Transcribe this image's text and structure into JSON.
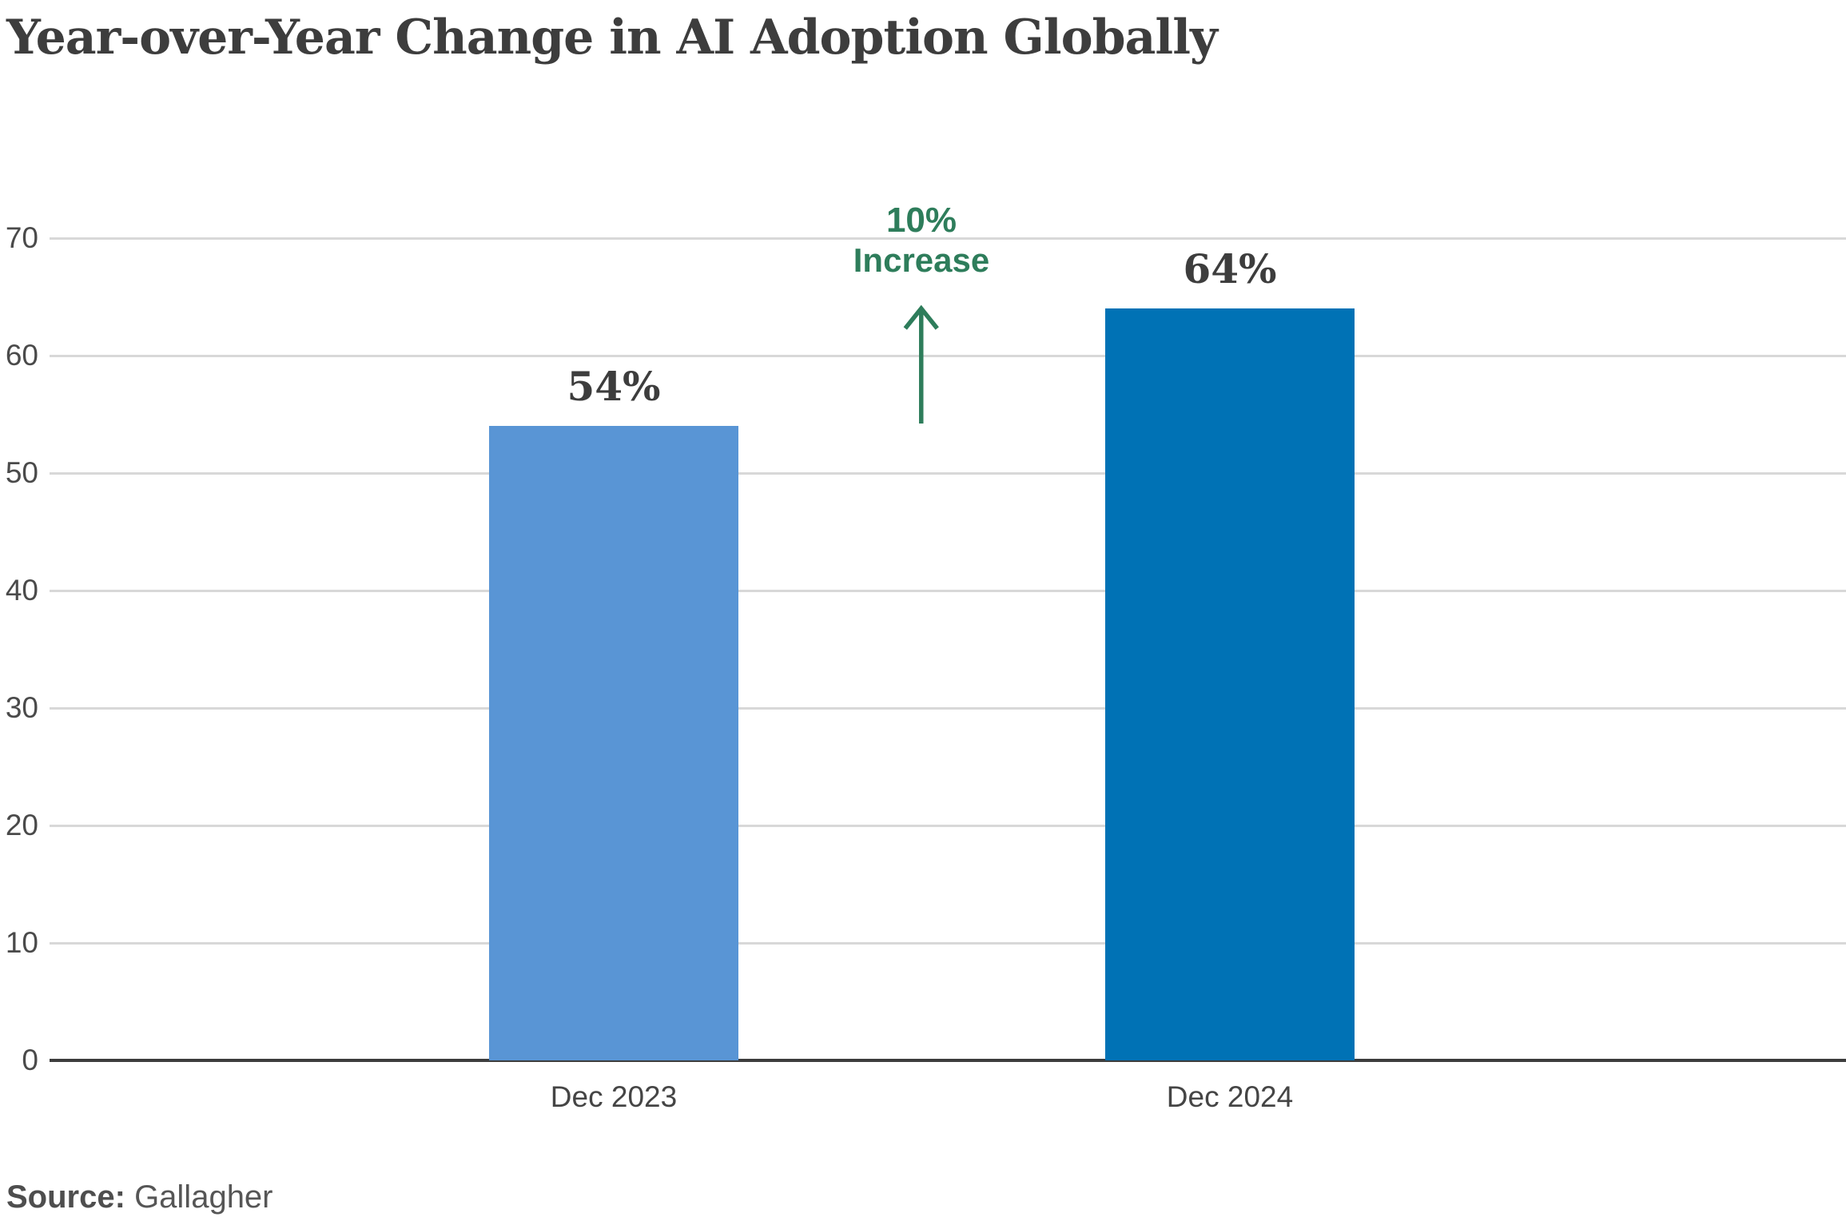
{
  "title": "Year-over-Year Change in AI Adoption Globally",
  "chart_data": {
    "type": "bar",
    "title": "Year-over-Year Change in AI Adoption Globally",
    "categories": [
      "Dec 2023",
      "Dec 2024"
    ],
    "values": [
      54,
      64
    ],
    "value_labels": [
      "54%",
      "64%"
    ],
    "series_colors": [
      "#5995d5",
      "#0072b5"
    ],
    "xlabel": "",
    "ylabel": "",
    "ylim": [
      0,
      70
    ],
    "yticks": [
      0,
      10,
      20,
      30,
      40,
      50,
      60,
      70
    ],
    "grid": true,
    "legend_position": "none",
    "annotation": {
      "line1": "10%",
      "line2": "Increase",
      "arrow": "up",
      "color": "#2e7d5b",
      "between_categories": [
        "Dec 2023",
        "Dec 2024"
      ]
    }
  },
  "source": {
    "label": "Source:",
    "value": "Gallagher"
  },
  "colors": {
    "background": "#ffffff",
    "bar_dec_2023": "#5995d5",
    "bar_dec_2024": "#0072b5",
    "annotation_green": "#2e7d5b",
    "title_text": "#3d3d3d",
    "tick_text": "#4a4a4a",
    "gridline": "#d8d8d8",
    "axis_line": "#3d3d3d",
    "source_text": "#565656"
  }
}
